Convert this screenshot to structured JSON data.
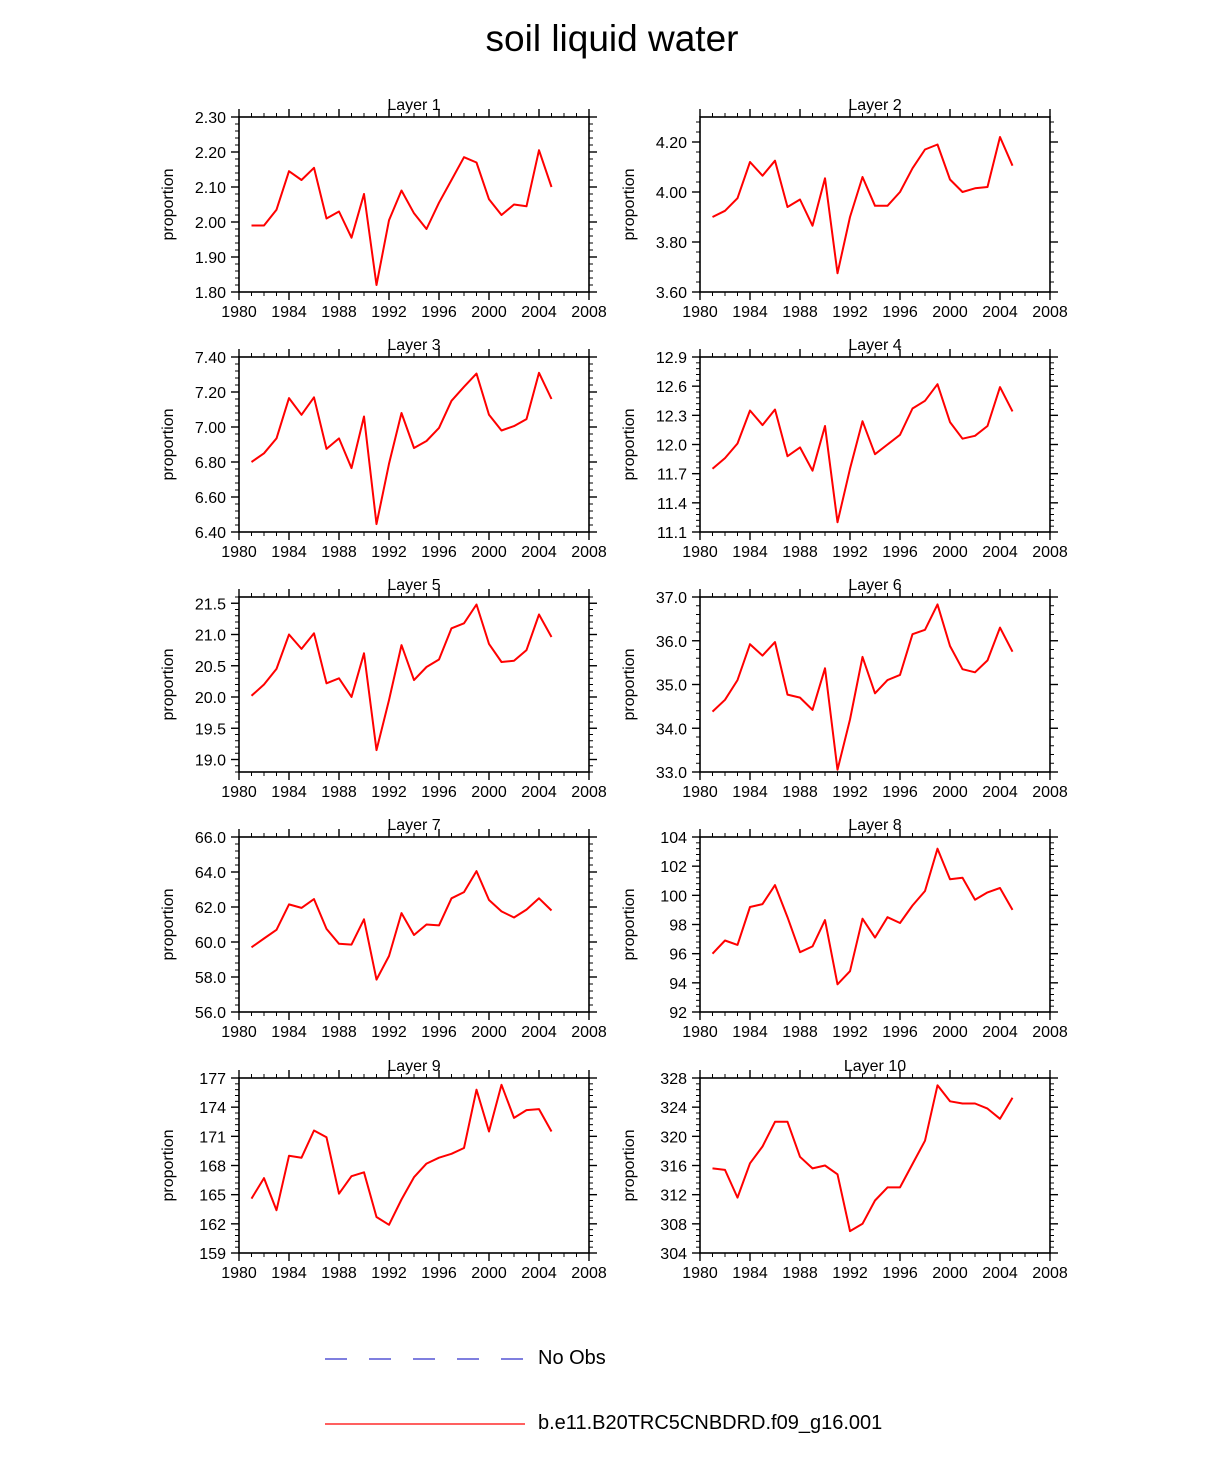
{
  "title": "soil liquid water",
  "legend": [
    {
      "label": "No Obs",
      "color": "#3333cc",
      "style": "dashed"
    },
    {
      "label": "b.e11.B20TRC5CNBDRD.f09_g16.001",
      "color": "#ff0000",
      "style": "solid"
    }
  ],
  "chart_data": [
    {
      "type": "line",
      "title": "Layer 1",
      "ylabel": "proportion",
      "xlim": [
        1980,
        2008
      ],
      "ylim": [
        1.8,
        2.3
      ],
      "xticks": [
        "1980",
        "1984",
        "1988",
        "1992",
        "1996",
        "2000",
        "2004",
        "2008"
      ],
      "yticks": [
        "1.80",
        "1.90",
        "2.00",
        "2.10",
        "2.20",
        "2.30"
      ],
      "x": [
        1981,
        1982,
        1983,
        1984,
        1985,
        1986,
        1987,
        1988,
        1989,
        1990,
        1991,
        1992,
        1993,
        1994,
        1995,
        1996,
        1997,
        1998,
        1999,
        2000,
        2001,
        2002,
        2003,
        2004,
        2005
      ],
      "series": [
        {
          "color": "#ff0000",
          "values": [
            1.99,
            1.99,
            2.035,
            2.145,
            2.12,
            2.155,
            2.01,
            2.03,
            1.955,
            2.08,
            1.82,
            2.005,
            2.09,
            2.025,
            1.98,
            2.055,
            2.12,
            2.185,
            2.17,
            2.065,
            2.02,
            2.05,
            2.045,
            2.205,
            2.1
          ]
        }
      ]
    },
    {
      "type": "line",
      "title": "Layer 2",
      "ylabel": "proportion",
      "xlim": [
        1980,
        2008
      ],
      "ylim": [
        3.6,
        4.3
      ],
      "xticks": [
        "1980",
        "1984",
        "1988",
        "1992",
        "1996",
        "2000",
        "2004",
        "2008"
      ],
      "yticks": [
        "3.60",
        "3.80",
        "4.00",
        "4.20"
      ],
      "x": [
        1981,
        1982,
        1983,
        1984,
        1985,
        1986,
        1987,
        1988,
        1989,
        1990,
        1991,
        1992,
        1993,
        1994,
        1995,
        1996,
        1997,
        1998,
        1999,
        2000,
        2001,
        2002,
        2003,
        2004,
        2005
      ],
      "series": [
        {
          "color": "#ff0000",
          "values": [
            3.9,
            3.925,
            3.975,
            4.12,
            4.065,
            4.125,
            3.94,
            3.97,
            3.865,
            4.055,
            3.675,
            3.9,
            4.06,
            3.945,
            3.945,
            4.0,
            4.095,
            4.17,
            4.19,
            4.05,
            4.0,
            4.015,
            4.02,
            4.22,
            4.105
          ]
        }
      ]
    },
    {
      "type": "line",
      "title": "Layer 3",
      "ylabel": "proportion",
      "xlim": [
        1980,
        2008
      ],
      "ylim": [
        6.4,
        7.4
      ],
      "xticks": [
        "1980",
        "1984",
        "1988",
        "1992",
        "1996",
        "2000",
        "2004",
        "2008"
      ],
      "yticks": [
        "6.40",
        "6.60",
        "6.80",
        "7.00",
        "7.20",
        "7.40"
      ],
      "x": [
        1981,
        1982,
        1983,
        1984,
        1985,
        1986,
        1987,
        1988,
        1989,
        1990,
        1991,
        1992,
        1993,
        1994,
        1995,
        1996,
        1997,
        1998,
        1999,
        2000,
        2001,
        2002,
        2003,
        2004,
        2005
      ],
      "series": [
        {
          "color": "#ff0000",
          "values": [
            6.8,
            6.85,
            6.935,
            7.165,
            7.07,
            7.17,
            6.875,
            6.935,
            6.765,
            7.06,
            6.445,
            6.79,
            7.08,
            6.88,
            6.92,
            6.995,
            7.15,
            7.23,
            7.305,
            7.07,
            6.98,
            7.005,
            7.045,
            7.31,
            7.16
          ]
        }
      ]
    },
    {
      "type": "line",
      "title": "Layer 4",
      "ylabel": "proportion",
      "xlim": [
        1980,
        2008
      ],
      "ylim": [
        11.1,
        12.9
      ],
      "xticks": [
        "1980",
        "1984",
        "1988",
        "1992",
        "1996",
        "2000",
        "2004",
        "2008"
      ],
      "yticks": [
        "11.1",
        "11.4",
        "11.7",
        "12.0",
        "12.3",
        "12.6",
        "12.9"
      ],
      "x": [
        1981,
        1982,
        1983,
        1984,
        1985,
        1986,
        1987,
        1988,
        1989,
        1990,
        1991,
        1992,
        1993,
        1994,
        1995,
        1996,
        1997,
        1998,
        1999,
        2000,
        2001,
        2002,
        2003,
        2004,
        2005
      ],
      "series": [
        {
          "color": "#ff0000",
          "values": [
            11.75,
            11.86,
            12.01,
            12.35,
            12.2,
            12.36,
            11.88,
            11.97,
            11.73,
            12.19,
            11.2,
            11.75,
            12.24,
            11.9,
            12.0,
            12.1,
            12.37,
            12.45,
            12.62,
            12.23,
            12.06,
            12.09,
            12.19,
            12.59,
            12.34
          ]
        }
      ]
    },
    {
      "type": "line",
      "title": "Layer 5",
      "ylabel": "proportion",
      "xlim": [
        1980,
        2008
      ],
      "ylim": [
        18.8,
        21.6
      ],
      "xticks": [
        "1980",
        "1984",
        "1988",
        "1992",
        "1996",
        "2000",
        "2004",
        "2008"
      ],
      "yticks": [
        "19.0",
        "19.5",
        "20.0",
        "20.5",
        "21.0",
        "21.5"
      ],
      "x": [
        1981,
        1982,
        1983,
        1984,
        1985,
        1986,
        1987,
        1988,
        1989,
        1990,
        1991,
        1992,
        1993,
        1994,
        1995,
        1996,
        1997,
        1998,
        1999,
        2000,
        2001,
        2002,
        2003,
        2004,
        2005
      ],
      "series": [
        {
          "color": "#ff0000",
          "values": [
            20.02,
            20.2,
            20.45,
            21.0,
            20.77,
            21.02,
            20.22,
            20.3,
            20.0,
            20.7,
            19.15,
            19.95,
            20.83,
            20.27,
            20.48,
            20.6,
            21.1,
            21.18,
            21.48,
            20.85,
            20.56,
            20.58,
            20.75,
            21.32,
            20.96
          ]
        }
      ]
    },
    {
      "type": "line",
      "title": "Layer 6",
      "ylabel": "proportion",
      "xlim": [
        1980,
        2008
      ],
      "ylim": [
        33.0,
        37.0
      ],
      "xticks": [
        "1980",
        "1984",
        "1988",
        "1992",
        "1996",
        "2000",
        "2004",
        "2008"
      ],
      "yticks": [
        "33.0",
        "34.0",
        "35.0",
        "36.0",
        "37.0"
      ],
      "x": [
        1981,
        1982,
        1983,
        1984,
        1985,
        1986,
        1987,
        1988,
        1989,
        1990,
        1991,
        1992,
        1993,
        1994,
        1995,
        1996,
        1997,
        1998,
        1999,
        2000,
        2001,
        2002,
        2003,
        2004,
        2005
      ],
      "series": [
        {
          "color": "#ff0000",
          "values": [
            34.38,
            34.65,
            35.1,
            35.92,
            35.66,
            35.97,
            34.77,
            34.7,
            34.42,
            35.37,
            33.05,
            34.2,
            35.63,
            34.8,
            35.1,
            35.22,
            36.15,
            36.25,
            36.83,
            35.88,
            35.35,
            35.28,
            35.55,
            36.3,
            35.75
          ]
        }
      ]
    },
    {
      "type": "line",
      "title": "Layer 7",
      "ylabel": "proportion",
      "xlim": [
        1980,
        2008
      ],
      "ylim": [
        56.0,
        66.0
      ],
      "xticks": [
        "1980",
        "1984",
        "1988",
        "1992",
        "1996",
        "2000",
        "2004",
        "2008"
      ],
      "yticks": [
        "56.0",
        "58.0",
        "60.0",
        "62.0",
        "64.0",
        "66.0"
      ],
      "x": [
        1981,
        1982,
        1983,
        1984,
        1985,
        1986,
        1987,
        1988,
        1989,
        1990,
        1991,
        1992,
        1993,
        1994,
        1995,
        1996,
        1997,
        1998,
        1999,
        2000,
        2001,
        2002,
        2003,
        2004,
        2005
      ],
      "series": [
        {
          "color": "#ff0000",
          "values": [
            59.7,
            60.2,
            60.7,
            62.15,
            61.95,
            62.45,
            60.75,
            59.9,
            59.85,
            61.3,
            57.85,
            59.2,
            61.65,
            60.4,
            61.0,
            60.95,
            62.5,
            62.85,
            64.05,
            62.4,
            61.75,
            61.4,
            61.85,
            62.5,
            61.8
          ]
        }
      ]
    },
    {
      "type": "line",
      "title": "Layer 8",
      "ylabel": "proportion",
      "xlim": [
        1980,
        2008
      ],
      "ylim": [
        92,
        104
      ],
      "xticks": [
        "1980",
        "1984",
        "1988",
        "1992",
        "1996",
        "2000",
        "2004",
        "2008"
      ],
      "yticks": [
        "92",
        "94",
        "96",
        "98",
        "100",
        "102",
        "104"
      ],
      "x": [
        1981,
        1982,
        1983,
        1984,
        1985,
        1986,
        1987,
        1988,
        1989,
        1990,
        1991,
        1992,
        1993,
        1994,
        1995,
        1996,
        1997,
        1998,
        1999,
        2000,
        2001,
        2002,
        2003,
        2004,
        2005
      ],
      "series": [
        {
          "color": "#ff0000",
          "values": [
            96.0,
            96.9,
            96.6,
            99.2,
            99.4,
            100.7,
            98.5,
            96.1,
            96.5,
            98.3,
            93.9,
            94.8,
            98.4,
            97.1,
            98.5,
            98.1,
            99.3,
            100.3,
            103.2,
            101.1,
            101.2,
            99.7,
            100.2,
            100.5,
            99.0
          ]
        }
      ]
    },
    {
      "type": "line",
      "title": "Layer 9",
      "ylabel": "proportion",
      "xlim": [
        1980,
        2008
      ],
      "ylim": [
        159,
        177
      ],
      "xticks": [
        "1980",
        "1984",
        "1988",
        "1992",
        "1996",
        "2000",
        "2004",
        "2008"
      ],
      "yticks": [
        "159",
        "162",
        "165",
        "168",
        "171",
        "174",
        "177"
      ],
      "x": [
        1981,
        1982,
        1983,
        1984,
        1985,
        1986,
        1987,
        1988,
        1989,
        1990,
        1991,
        1992,
        1993,
        1994,
        1995,
        1996,
        1997,
        1998,
        1999,
        2000,
        2001,
        2002,
        2003,
        2004,
        2005
      ],
      "series": [
        {
          "color": "#ff0000",
          "values": [
            164.6,
            166.7,
            163.4,
            169.0,
            168.8,
            171.6,
            170.9,
            165.1,
            166.9,
            167.3,
            162.7,
            161.9,
            164.5,
            166.8,
            168.2,
            168.8,
            169.2,
            169.8,
            175.8,
            171.5,
            176.3,
            172.9,
            173.7,
            173.8,
            171.5
          ]
        }
      ]
    },
    {
      "type": "line",
      "title": "Layer 10",
      "ylabel": "proportion",
      "xlim": [
        1980,
        2008
      ],
      "ylim": [
        304,
        328
      ],
      "xticks": [
        "1980",
        "1984",
        "1988",
        "1992",
        "1996",
        "2000",
        "2004",
        "2008"
      ],
      "yticks": [
        "304",
        "308",
        "312",
        "316",
        "320",
        "324",
        "328"
      ],
      "x": [
        1981,
        1982,
        1983,
        1984,
        1985,
        1986,
        1987,
        1988,
        1989,
        1990,
        1991,
        1992,
        1993,
        1994,
        1995,
        1996,
        1997,
        1998,
        1999,
        2000,
        2001,
        2002,
        2003,
        2004,
        2005
      ],
      "series": [
        {
          "color": "#ff0000",
          "values": [
            315.6,
            315.4,
            311.6,
            316.3,
            318.6,
            322.0,
            322.0,
            317.2,
            315.6,
            316.0,
            314.8,
            307.0,
            308.0,
            311.2,
            313.0,
            313.0,
            316.2,
            319.4,
            327.0,
            324.8,
            324.5,
            324.5,
            323.8,
            322.4,
            325.3
          ]
        }
      ]
    }
  ]
}
